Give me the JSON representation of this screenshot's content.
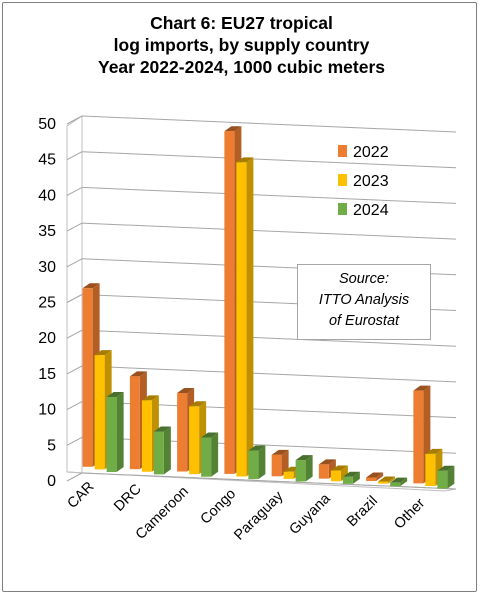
{
  "chart_data": {
    "type": "bar",
    "title_lines": [
      "Chart 6: EU27 tropical",
      "log imports, by supply country",
      "Year 2022-2024, 1000 cubic meters"
    ],
    "categories": [
      "CAR",
      "DRC",
      "Cameroon",
      "Congo",
      "Paraguay",
      "Guyana",
      "Brazil",
      "Other"
    ],
    "series": [
      {
        "name": "2022",
        "values": [
          25,
          13,
          11,
          48,
          3,
          2,
          0.5,
          13
        ],
        "color": "#ed7d31"
      },
      {
        "name": "2023",
        "values": [
          16,
          10,
          9.5,
          44,
          1,
          1.5,
          0.3,
          4.5
        ],
        "color": "#ffc000"
      },
      {
        "name": "2024",
        "values": [
          10.5,
          6,
          5.5,
          4,
          3,
          1,
          0.5,
          2.5
        ],
        "color": "#70ad47"
      }
    ],
    "ylim": [
      0,
      50
    ],
    "yticks": [
      "0",
      "5",
      "10",
      "15",
      "20",
      "25",
      "30",
      "35",
      "40",
      "45",
      "50"
    ],
    "grid": true,
    "legend_position": "top-right",
    "annotation_lines": [
      "Source:",
      "ITTO  Analysis",
      "of Eurostat"
    ]
  }
}
